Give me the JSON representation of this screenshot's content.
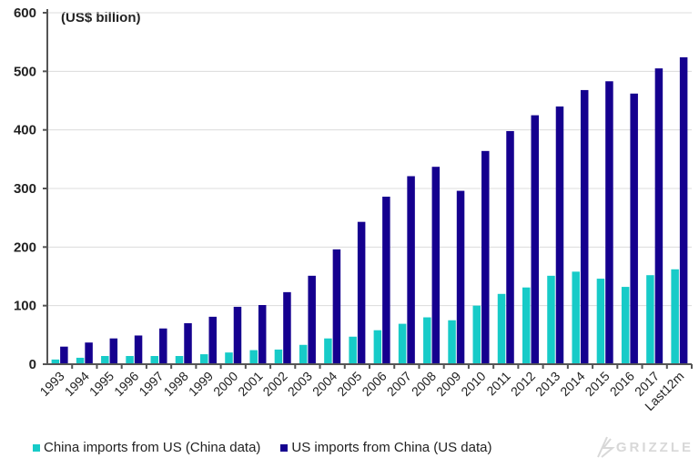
{
  "chart_data": {
    "type": "bar",
    "unit_label": "(US$ billion)",
    "categories": [
      "1993",
      "1994",
      "1995",
      "1996",
      "1997",
      "1998",
      "1999",
      "2000",
      "2001",
      "2002",
      "2003",
      "2004",
      "2005",
      "2006",
      "2007",
      "2008",
      "2009",
      "2010",
      "2011",
      "2012",
      "2013",
      "2014",
      "2015",
      "2016",
      "2017",
      "Last12m"
    ],
    "series": [
      {
        "name": "China imports from US (China data)",
        "color": "#17cbc8",
        "values": [
          8,
          11,
          14,
          14,
          14,
          14,
          17,
          20,
          24,
          25,
          33,
          44,
          47,
          58,
          69,
          80,
          75,
          100,
          120,
          131,
          151,
          158,
          146,
          132,
          152,
          162
        ]
      },
      {
        "name": "US imports from China (US data)",
        "color": "#15008f",
        "values": [
          30,
          37,
          44,
          49,
          61,
          70,
          81,
          98,
          101,
          123,
          151,
          196,
          243,
          286,
          321,
          337,
          296,
          364,
          398,
          425,
          440,
          468,
          483,
          462,
          505,
          524
        ]
      }
    ],
    "ylim": [
      0,
      600
    ],
    "yticks": [
      0,
      100,
      200,
      300,
      400,
      500,
      600
    ],
    "grid": true,
    "legend": "bottom"
  },
  "logo_text": "GRIZZLE"
}
